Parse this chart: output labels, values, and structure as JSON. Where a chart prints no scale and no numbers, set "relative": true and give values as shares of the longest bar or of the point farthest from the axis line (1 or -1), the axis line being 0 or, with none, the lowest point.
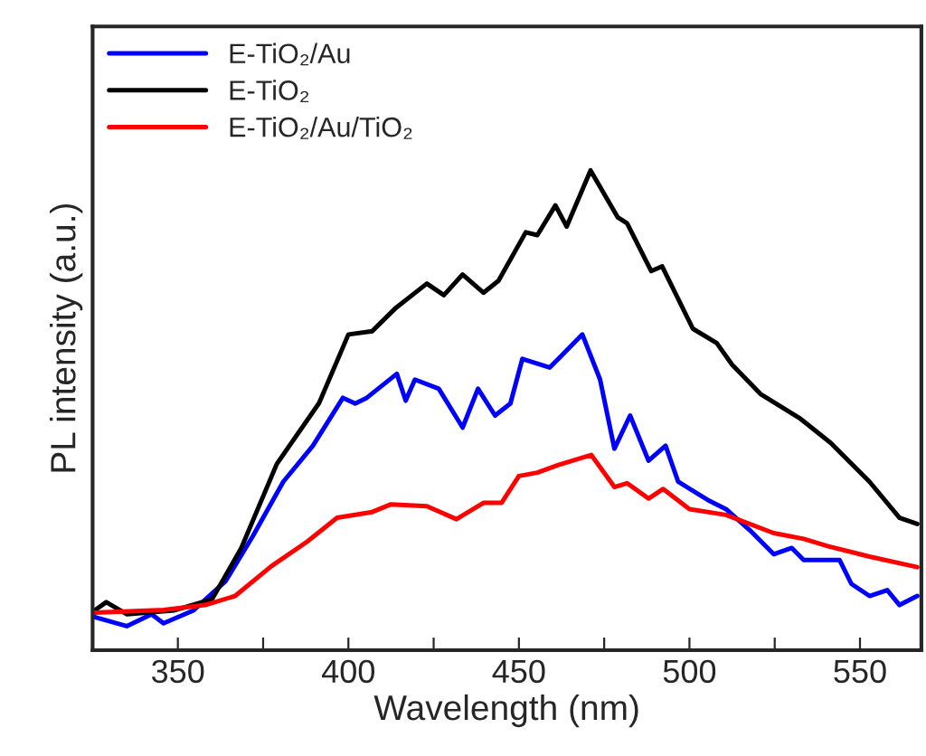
{
  "chart_data": {
    "type": "line",
    "relative": true,
    "xlabel": "Wavelength (nm)",
    "ylabel": "PL intensity (a.u.)",
    "xlim": [
      325,
      568
    ],
    "xticks": [
      {
        "value": 325,
        "label": null
      },
      350,
      {
        "value": 375,
        "label": null
      },
      400,
      {
        "value": 425,
        "label": null
      },
      450,
      {
        "value": 475,
        "label": null
      },
      500,
      {
        "value": 525,
        "label": null
      },
      550
    ],
    "tick_labels": "x",
    "legend": "top left",
    "grid": false,
    "line_style": "solid",
    "series": [
      {
        "name": "E-TiO₂/Au",
        "color": "#0000ff",
        "x": [
          325.6,
          335,
          342.3,
          345.8,
          354.6,
          364,
          372,
          380.9,
          389.6,
          398.4,
          402,
          405.4,
          409.8,
          414.2,
          416.8,
          419.5,
          426.5,
          433.5,
          438,
          443,
          447.5,
          451,
          459,
          462.5,
          468.6,
          473.8,
          478,
          482.6,
          488,
          493,
          496.7,
          505.4,
          510.7,
          517.7,
          524.7,
          530,
          533.5,
          544,
          547.5,
          552.8,
          558,
          561.6,
          566.8
        ],
        "values": [
          0.069,
          0.05,
          0.075,
          0.056,
          0.083,
          0.144,
          0.238,
          0.351,
          0.426,
          0.526,
          0.514,
          0.526,
          0.551,
          0.576,
          0.52,
          0.564,
          0.545,
          0.464,
          0.545,
          0.489,
          0.514,
          0.607,
          0.589,
          0.614,
          0.658,
          0.564,
          0.42,
          0.489,
          0.395,
          0.426,
          0.351,
          0.313,
          0.294,
          0.25,
          0.2,
          0.213,
          0.188,
          0.188,
          0.138,
          0.113,
          0.125,
          0.094,
          0.113
        ]
      },
      {
        "name": "E-TiO₂",
        "color": "#000000",
        "x": [
          325.6,
          329,
          335,
          349,
          360,
          368.6,
          379,
          391.4,
          400,
          407,
          414,
          423,
          428,
          433.5,
          439.6,
          444,
          452,
          455.4,
          460.7,
          464,
          471,
          479,
          481.7,
          488.8,
          492,
          501,
          508,
          512.5,
          521,
          532.6,
          541.4,
          552.8,
          561.6,
          566.8
        ],
        "values": [
          0.083,
          0.1,
          0.075,
          0.083,
          0.106,
          0.213,
          0.388,
          0.515,
          0.658,
          0.665,
          0.714,
          0.764,
          0.74,
          0.783,
          0.745,
          0.77,
          0.871,
          0.865,
          0.927,
          0.883,
          1.0,
          0.902,
          0.89,
          0.79,
          0.8,
          0.67,
          0.64,
          0.595,
          0.533,
          0.482,
          0.432,
          0.351,
          0.276,
          0.263
        ]
      },
      {
        "name": "E-TiO₂/Au/TiO₂",
        "color": "#ff0000",
        "x": [
          325.6,
          345.8,
          358,
          366.8,
          377.4,
          387.9,
          396.7,
          407,
          412.5,
          423,
          431.7,
          439.6,
          444.9,
          450,
          455.4,
          461.6,
          471.2,
          478,
          481.7,
          488,
          492.3,
          500,
          510.7,
          524.7,
          533.5,
          540.5,
          552.8,
          566.8
        ],
        "values": [
          0.078,
          0.084,
          0.094,
          0.113,
          0.175,
          0.226,
          0.276,
          0.288,
          0.304,
          0.3,
          0.273,
          0.307,
          0.307,
          0.363,
          0.37,
          0.386,
          0.407,
          0.34,
          0.348,
          0.316,
          0.336,
          0.294,
          0.282,
          0.244,
          0.232,
          0.217,
          0.195,
          0.173
        ]
      }
    ]
  }
}
